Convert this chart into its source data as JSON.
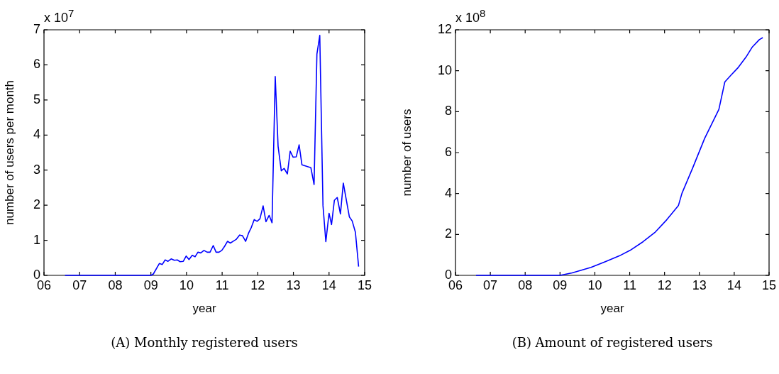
{
  "chart_data": [
    {
      "type": "line",
      "title": "(A) Monthly registered users",
      "xlabel": "year",
      "ylabel": "number of users per month",
      "annotations": [
        "x 10$^{7}$"
      ],
      "x": [
        6.59,
        9.0,
        9.07,
        9.24,
        9.32,
        9.4,
        9.48,
        9.57,
        9.66,
        9.74,
        9.82,
        9.91,
        9.99,
        10.07,
        10.16,
        10.24,
        10.32,
        10.4,
        10.49,
        10.58,
        10.66,
        10.75,
        10.83,
        10.91,
        10.99,
        11.07,
        11.15,
        11.23,
        11.32,
        11.4,
        11.49,
        11.57,
        11.66,
        11.74,
        11.82,
        11.9,
        11.98,
        12.06,
        12.15,
        12.23,
        12.32,
        12.4,
        12.49,
        12.57,
        12.66,
        12.74,
        12.83,
        12.91,
        12.99,
        13.08,
        13.16,
        13.24,
        13.49,
        13.58,
        13.66,
        13.74,
        13.83,
        13.91,
        14.0,
        14.07,
        14.15,
        14.23,
        14.32,
        14.4,
        14.49,
        14.57,
        14.65,
        14.74,
        14.83
      ],
      "series": [
        {
          "color": "#0000ff",
          "values": [
            0,
            0,
            0.04,
            0.34,
            0.31,
            0.44,
            0.4,
            0.47,
            0.43,
            0.44,
            0.39,
            0.4,
            0.55,
            0.45,
            0.57,
            0.53,
            0.66,
            0.64,
            0.71,
            0.66,
            0.66,
            0.85,
            0.66,
            0.66,
            0.71,
            0.83,
            0.97,
            0.92,
            0.98,
            1.03,
            1.15,
            1.13,
            0.97,
            1.2,
            1.37,
            1.59,
            1.54,
            1.61,
            1.98,
            1.53,
            1.71,
            1.5,
            5.67,
            3.68,
            2.98,
            3.05,
            2.89,
            3.54,
            3.37,
            3.38,
            3.72,
            3.15,
            3.07,
            2.59,
            6.31,
            6.84,
            1.99,
            0.96,
            1.77,
            1.45,
            2.14,
            2.22,
            1.75,
            2.63,
            2.12,
            1.67,
            1.55,
            1.23,
            0.25
          ]
        }
      ],
      "xlim": [
        6,
        15
      ],
      "xticks": [
        {
          "value": 6,
          "label": "06"
        },
        {
          "value": 7,
          "label": "07"
        },
        {
          "value": 8,
          "label": "08"
        },
        {
          "value": 9,
          "label": "09"
        },
        10,
        11,
        12,
        13,
        14,
        15
      ],
      "ylim": [
        0,
        7
      ],
      "yticks": [
        0,
        1,
        2,
        3,
        4,
        5,
        6,
        7
      ]
    },
    {
      "type": "line",
      "title": "(B) Amount of registered users",
      "xlabel": "year",
      "ylabel": "number of users",
      "annotations": [
        "x 10$^{8}$"
      ],
      "x": [
        6.59,
        9.0,
        9.35,
        9.89,
        10.3,
        10.7,
        11.01,
        11.38,
        11.72,
        12.06,
        12.2,
        12.4,
        12.5,
        12.81,
        13.15,
        13.56,
        13.73,
        13.9,
        14.1,
        14.34,
        14.51,
        14.72,
        14.82
      ],
      "series": [
        {
          "color": "#0000ff",
          "values": [
            0,
            0,
            0.12,
            0.39,
            0.67,
            0.95,
            1.22,
            1.64,
            2.09,
            2.71,
            3.0,
            3.42,
            4.01,
            5.26,
            6.69,
            8.11,
            9.45,
            9.77,
            10.13,
            10.67,
            11.14,
            11.52,
            11.62
          ]
        }
      ],
      "xlim": [
        6,
        15
      ],
      "xticks": [
        {
          "value": 6,
          "label": "06"
        },
        {
          "value": 7,
          "label": "07"
        },
        {
          "value": 8,
          "label": "08"
        },
        {
          "value": 9,
          "label": "09"
        },
        10,
        11,
        12,
        13,
        14,
        15
      ],
      "ylim": [
        0,
        12
      ],
      "yticks": [
        0,
        2,
        4,
        6,
        8,
        10,
        12
      ]
    }
  ]
}
